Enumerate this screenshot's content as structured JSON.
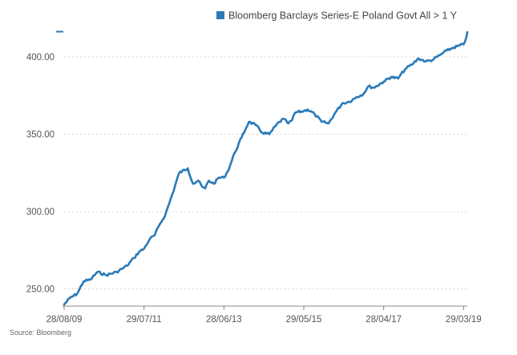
{
  "chart_data": {
    "type": "line",
    "title": "",
    "xlabel": "",
    "ylabel": "",
    "x_tick_labels": [
      "28/08/09",
      "29/07/11",
      "28/06/13",
      "29/05/15",
      "28/04/17",
      "29/03/19"
    ],
    "y_ticks": [
      250,
      300,
      350,
      400
    ],
    "y_tick_labels": [
      "250.00",
      "300.00",
      "350.00",
      "400.00"
    ],
    "ylim": [
      240,
      416
    ],
    "xlim": [
      "2009-08-28",
      "2019-05-01"
    ],
    "grid": true,
    "legend_position": "top-right",
    "series": [
      {
        "name": "Bloomberg Barclays Series-E Poland Govt All > 1 Y",
        "color": "#2a7ab8",
        "x": [
          "2009-08-28",
          "2009-10-15",
          "2009-12-20",
          "2010-02-15",
          "2010-04-15",
          "2010-06-15",
          "2010-09-01",
          "2010-12-01",
          "2011-01-15",
          "2011-03-01",
          "2011-05-01",
          "2011-06-15",
          "2011-07-29",
          "2011-09-15",
          "2011-11-01",
          "2011-12-15",
          "2012-02-01",
          "2012-04-01",
          "2012-06-01",
          "2012-08-15",
          "2012-10-01",
          "2012-11-15",
          "2012-12-20",
          "2013-01-15",
          "2013-02-15",
          "2013-04-01",
          "2013-05-15",
          "2013-06-28",
          "2013-08-01",
          "2013-10-01",
          "2013-12-01",
          "2014-02-01",
          "2014-04-01",
          "2014-06-01",
          "2014-08-01",
          "2014-10-01",
          "2014-12-01",
          "2015-01-15",
          "2015-02-15",
          "2015-03-15",
          "2015-05-29",
          "2015-07-01",
          "2015-09-01",
          "2015-11-01",
          "2016-01-01",
          "2016-03-01",
          "2016-05-01",
          "2016-07-01",
          "2016-09-01",
          "2016-11-01",
          "2016-12-15",
          "2017-02-01",
          "2017-04-28",
          "2017-07-01",
          "2017-09-01",
          "2017-11-01",
          "2018-01-01",
          "2018-03-01",
          "2018-05-01",
          "2018-07-01",
          "2018-09-01",
          "2018-11-01",
          "2019-01-01",
          "2019-03-29",
          "2019-04-20",
          "2019-05-01"
        ],
        "values": [
          240,
          244,
          247,
          255,
          256,
          261,
          259,
          261,
          263,
          265,
          270,
          274,
          276,
          282,
          285,
          292,
          298,
          311,
          325,
          328,
          318,
          320,
          316,
          315,
          320,
          318,
          322,
          322,
          326,
          338,
          348,
          358,
          356,
          351,
          350,
          356,
          360,
          357,
          359,
          364,
          365,
          366,
          363,
          358,
          357,
          364,
          370,
          371,
          374,
          376,
          381,
          380,
          384,
          387,
          386,
          392,
          395,
          399,
          397,
          398,
          401,
          404,
          406,
          408,
          412,
          416
        ]
      }
    ]
  },
  "source": "Source: Bloomberg"
}
